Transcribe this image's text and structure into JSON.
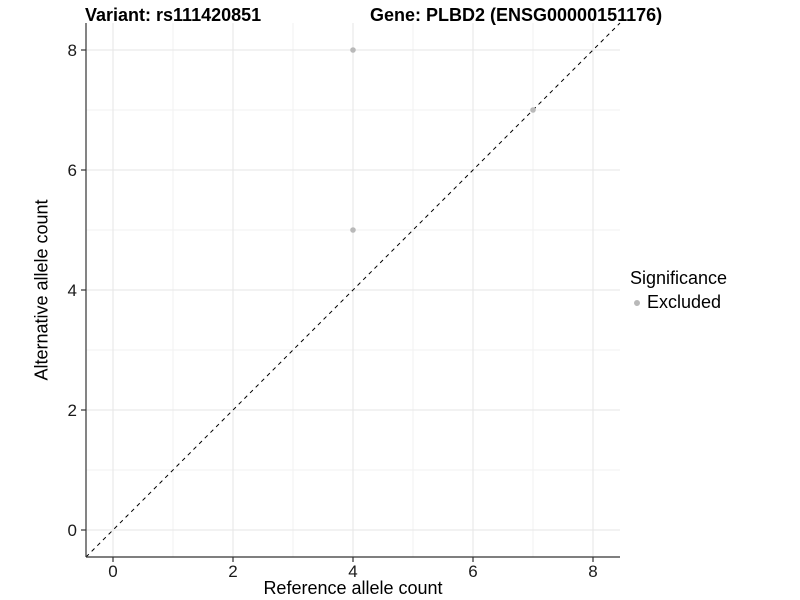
{
  "titles": {
    "variant": "Variant: rs111420851",
    "gene": "Gene: PLBD2 (ENSG00000151176)"
  },
  "chart_data": {
    "type": "scatter",
    "title": "Variant: rs111420851   Gene: PLBD2 (ENSG00000151176)",
    "xlabel": "Reference allele count",
    "ylabel": "Alternative allele count",
    "xlim": [
      -0.45,
      8.45
    ],
    "ylim": [
      -0.45,
      8.45
    ],
    "x_ticks": [
      0,
      2,
      4,
      6,
      8
    ],
    "y_ticks": [
      0,
      2,
      4,
      6,
      8
    ],
    "x_minor_ticks": [
      1,
      3,
      5,
      7
    ],
    "y_minor_ticks": [
      1,
      3,
      5,
      7
    ],
    "grid": true,
    "series": [
      {
        "name": "Excluded",
        "color": "#b9b9b9",
        "points": [
          [
            4,
            8
          ],
          [
            7,
            7
          ],
          [
            4,
            5
          ]
        ]
      }
    ],
    "reference_line": {
      "description": "identity line y = x",
      "slope": 1,
      "intercept": 0,
      "style": "dashed",
      "color": "#000000"
    },
    "legend": {
      "title": "Significance",
      "position": "right",
      "entries": [
        {
          "label": "Excluded",
          "color": "#b9b9b9"
        }
      ]
    }
  },
  "colors": {
    "background": "#ffffff",
    "major_grid": "#e6e6e6",
    "minor_grid": "#f2f2f2",
    "axis_line": "#333333",
    "tick_label": "#1a1a1a",
    "point": "#b9b9b9",
    "reference_line": "#000000"
  }
}
